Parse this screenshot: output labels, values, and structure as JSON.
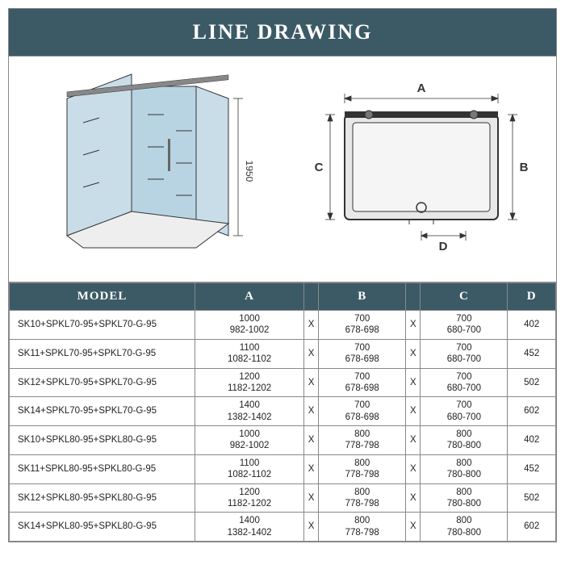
{
  "title": "LINE DRAWING",
  "colors": {
    "header_bg": "#3b5a66",
    "header_text": "#ffffff",
    "border": "#888888",
    "glass": "#b8d4e3",
    "tray": "#d0d0d0",
    "line": "#333333"
  },
  "diagram_3d": {
    "height_label": "1950"
  },
  "diagram_plan": {
    "labels": {
      "A": "A",
      "B": "B",
      "C": "C",
      "D": "D"
    }
  },
  "table": {
    "headers": [
      "MODEL",
      "A",
      "B",
      "C",
      "D"
    ],
    "rows": [
      {
        "model": "SK10+SPKL70-95+SPKL70-G-95",
        "A": {
          "t": "1000",
          "b": "982-1002"
        },
        "B": {
          "t": "700",
          "b": "678-698"
        },
        "C": {
          "t": "700",
          "b": "680-700"
        },
        "D": "402"
      },
      {
        "model": "SK11+SPKL70-95+SPKL70-G-95",
        "A": {
          "t": "1100",
          "b": "1082-1102"
        },
        "B": {
          "t": "700",
          "b": "678-698"
        },
        "C": {
          "t": "700",
          "b": "680-700"
        },
        "D": "452"
      },
      {
        "model": "SK12+SPKL70-95+SPKL70-G-95",
        "A": {
          "t": "1200",
          "b": "1182-1202"
        },
        "B": {
          "t": "700",
          "b": "678-698"
        },
        "C": {
          "t": "700",
          "b": "680-700"
        },
        "D": "502"
      },
      {
        "model": "SK14+SPKL70-95+SPKL70-G-95",
        "A": {
          "t": "1400",
          "b": "1382-1402"
        },
        "B": {
          "t": "700",
          "b": "678-698"
        },
        "C": {
          "t": "700",
          "b": "680-700"
        },
        "D": "602"
      },
      {
        "model": "SK10+SPKL80-95+SPKL80-G-95",
        "A": {
          "t": "1000",
          "b": "982-1002"
        },
        "B": {
          "t": "800",
          "b": "778-798"
        },
        "C": {
          "t": "800",
          "b": "780-800"
        },
        "D": "402"
      },
      {
        "model": "SK11+SPKL80-95+SPKL80-G-95",
        "A": {
          "t": "1100",
          "b": "1082-1102"
        },
        "B": {
          "t": "800",
          "b": "778-798"
        },
        "C": {
          "t": "800",
          "b": "780-800"
        },
        "D": "452"
      },
      {
        "model": "SK12+SPKL80-95+SPKL80-G-95",
        "A": {
          "t": "1200",
          "b": "1182-1202"
        },
        "B": {
          "t": "800",
          "b": "778-798"
        },
        "C": {
          "t": "800",
          "b": "780-800"
        },
        "D": "502"
      },
      {
        "model": "SK14+SPKL80-95+SPKL80-G-95",
        "A": {
          "t": "1400",
          "b": "1382-1402"
        },
        "B": {
          "t": "800",
          "b": "778-798"
        },
        "C": {
          "t": "800",
          "b": "780-800"
        },
        "D": "602"
      }
    ]
  }
}
